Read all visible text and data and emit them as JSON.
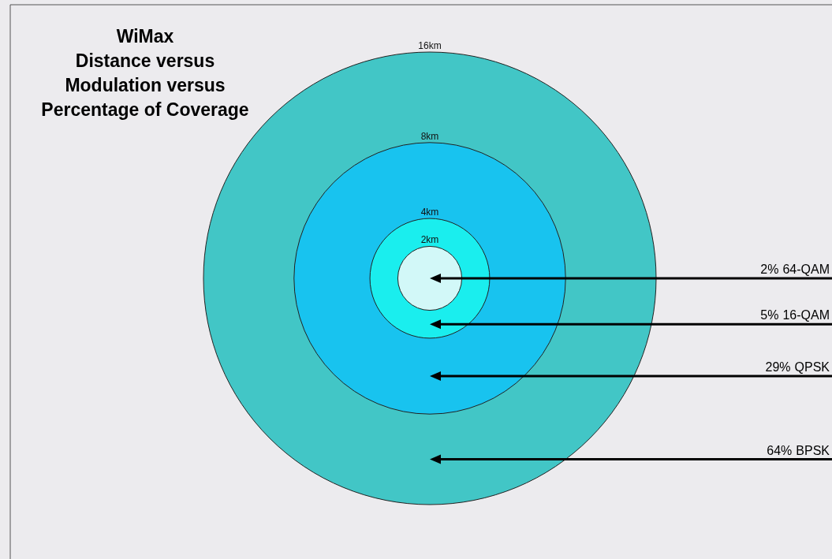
{
  "chart_data": {
    "type": "other",
    "title": "WiMax\nDistance versus\nModulation versus\nPercentage of Coverage",
    "categories": [
      "64-QAM",
      "16-QAM",
      "QPSK",
      "BPSK"
    ],
    "values": [
      2,
      5,
      29,
      64
    ],
    "value_labels": [
      "2%",
      "5%",
      "29%",
      "64%"
    ],
    "colors": [
      "#d2f8f8",
      "#1aeeee",
      "#18c3ef",
      "#42c6c6"
    ],
    "annotations": [
      "2km",
      "4km",
      "8km",
      "16km"
    ]
  }
}
